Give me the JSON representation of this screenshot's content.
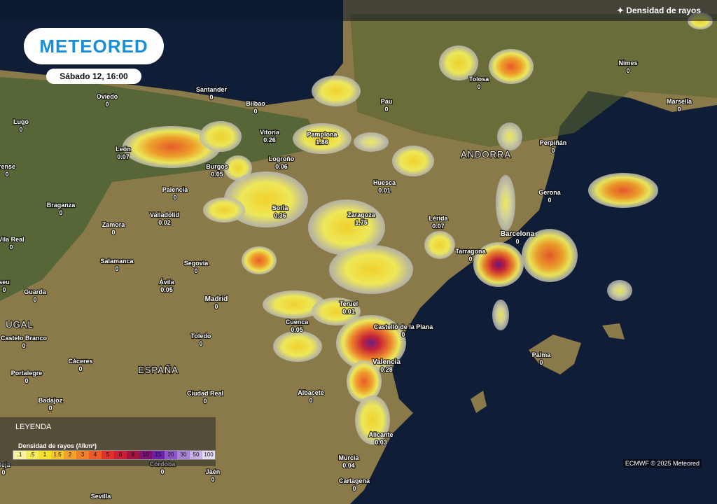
{
  "header": {
    "layer": "Densidad de rayos",
    "logo": "METEORED",
    "time": "Sábado 12, 16:00"
  },
  "regions": [
    "ANDORRA",
    "ESPAÑA",
    "UGAL"
  ],
  "cities": [
    {
      "name": "Oviedo",
      "value": 0
    },
    {
      "name": "Santander",
      "value": 0
    },
    {
      "name": "Bilbao",
      "value": 0
    },
    {
      "name": "Lugo",
      "value": 0
    },
    {
      "name": "Vitoria",
      "value": 0.26
    },
    {
      "name": "Pamplona",
      "value": 1.86
    },
    {
      "name": "Pau",
      "value": 0
    },
    {
      "name": "Tolosa",
      "value": 0
    },
    {
      "name": "Nimes",
      "value": 0
    },
    {
      "name": "Marsella",
      "value": 0
    },
    {
      "name": "León",
      "value": 0.07
    },
    {
      "name": "Burgos",
      "value": 0.05
    },
    {
      "name": "Logroño",
      "value": 0.06
    },
    {
      "name": "rense",
      "value": 0
    },
    {
      "name": "Palencia",
      "value": 0
    },
    {
      "name": "Huesca",
      "value": 0.01
    },
    {
      "name": "Perpiñán",
      "value": 0
    },
    {
      "name": "Gerona",
      "value": 0
    },
    {
      "name": "Braganza",
      "value": 0
    },
    {
      "name": "Zamora",
      "value": 0
    },
    {
      "name": "Valladolid",
      "value": 0.02
    },
    {
      "name": "Soria",
      "value": 0.36
    },
    {
      "name": "Zaragoza",
      "value": 1.75
    },
    {
      "name": "Lérida",
      "value": 0.07
    },
    {
      "name": "Barcelona",
      "value": 0
    },
    {
      "name": "Vila Real",
      "value": 0
    },
    {
      "name": "Tarragona",
      "value": 0
    },
    {
      "name": "Salamanca",
      "value": 0
    },
    {
      "name": "Segovia",
      "value": 0
    },
    {
      "name": "Ávila",
      "value": 0.05
    },
    {
      "name": "Madrid",
      "value": 0
    },
    {
      "name": "Teruel",
      "value": 0.01
    },
    {
      "name": "Guarda",
      "value": 0
    },
    {
      "name": "seu",
      "value": 0
    },
    {
      "name": "Cuenca",
      "value": 0.05
    },
    {
      "name": "Castelló de la Plana",
      "value": 0
    },
    {
      "name": "Toledo",
      "value": 0
    },
    {
      "name": "Castelo Branco",
      "value": 0
    },
    {
      "name": "Cáceres",
      "value": 0
    },
    {
      "name": "Valencia",
      "value": 0.28
    },
    {
      "name": "Palma",
      "value": 0
    },
    {
      "name": "Portalegre",
      "value": 0
    },
    {
      "name": "Albacete",
      "value": 0
    },
    {
      "name": "Ciudad Real",
      "value": 0
    },
    {
      "name": "Badajoz",
      "value": 0
    },
    {
      "name": "Alicante",
      "value": 0.03
    },
    {
      "name": "Murcia",
      "value": 0.04
    },
    {
      "name": "Córdoba",
      "value": 0
    },
    {
      "name": "Jaén",
      "value": 0
    },
    {
      "name": "Beja",
      "value": 0
    },
    {
      "name": "Cartagena",
      "value": 0
    },
    {
      "name": "Sevilla"
    }
  ],
  "legend": {
    "title": "LEYENDA",
    "subtitle": "Densidad de rayos (#/km²)",
    "items": [
      {
        "value": 0.1,
        "label": ".1",
        "color": "#f7f3a0"
      },
      {
        "value": 0.5,
        "label": ".5",
        "color": "#f5ec5a"
      },
      {
        "value": 1,
        "color": "#f6e12c"
      },
      {
        "value": 1.5,
        "color": "#f7c52a"
      },
      {
        "value": 2,
        "color": "#f5a22a"
      },
      {
        "value": 3,
        "color": "#f2802a"
      },
      {
        "value": 4,
        "color": "#ee5a2a"
      },
      {
        "value": 5,
        "color": "#e1302c"
      },
      {
        "value": 6,
        "color": "#c81f36"
      },
      {
        "value": 8,
        "color": "#a0143f"
      },
      {
        "value": 10,
        "color": "#7a1272"
      },
      {
        "value": 15,
        "color": "#6a22a8"
      },
      {
        "value": 20,
        "color": "#8a55c8"
      },
      {
        "value": 30,
        "color": "#a884d6"
      },
      {
        "value": 50,
        "color": "#c7b0e4"
      },
      {
        "value": 100,
        "color": "#e6dcf2"
      }
    ]
  },
  "credit": "ECMWF © 2025 Meteored"
}
